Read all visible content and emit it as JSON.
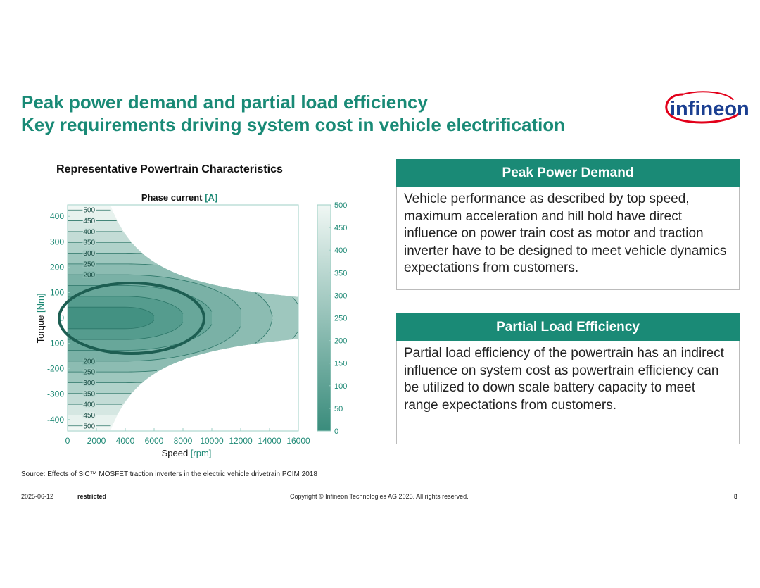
{
  "header": {
    "title_lines": [
      "Peak power demand and partial load efficiency",
      "Key requirements driving system cost in vehicle electrification"
    ]
  },
  "logo": "infineon",
  "chart_heading": "Representative Powertrain Characteristics",
  "chart_data": {
    "type": "contour",
    "title": "Phase current",
    "title_unit": "[A]",
    "x_label": "Speed",
    "x_unit": "[rpm]",
    "y_label": "Torque",
    "y_unit": "[Nm]",
    "xlim": [
      0,
      16000
    ],
    "xticks": [
      0,
      2000,
      4000,
      6000,
      8000,
      10000,
      12000,
      14000,
      16000
    ],
    "ylim": [
      -445,
      445
    ],
    "yticks": [
      -400,
      -300,
      -200,
      -100,
      0,
      100,
      200,
      300,
      400
    ],
    "levels": [
      50,
      100,
      150,
      200,
      250,
      300,
      350,
      400,
      450,
      500
    ],
    "clim": [
      0,
      500
    ],
    "cticks": [
      0,
      50,
      100,
      150,
      200,
      250,
      300,
      350,
      400,
      450,
      500
    ],
    "colormap": [
      "#3a8c7c",
      "#f0f7f4"
    ],
    "line_color": "#2c7668",
    "tick_color": "#1f8a76"
  },
  "panels": [
    {
      "title": "Peak Power Demand",
      "text": "Vehicle performance as described by top speed, maximum acceleration and hill hold have direct influence on power train cost as motor and traction inverter have to be designed to meet vehicle dynamics expectations from customers."
    },
    {
      "title": "Partial Load Efficiency",
      "text": "Partial load efficiency of the powertrain has an indirect influence on system cost as powertrain efficiency can be utilized to down scale battery capacity to meet range expectations from customers."
    }
  ],
  "source": "Source: Effects of SiC™ MOSFET traction inverters in the electric vehicle drivetrain PCIM 2018",
  "footer": {
    "date": "2025-06-12",
    "classification": "restricted",
    "copyright": "Copyright © Infineon Technologies AG 2025. All rights reserved.",
    "page": 8
  }
}
